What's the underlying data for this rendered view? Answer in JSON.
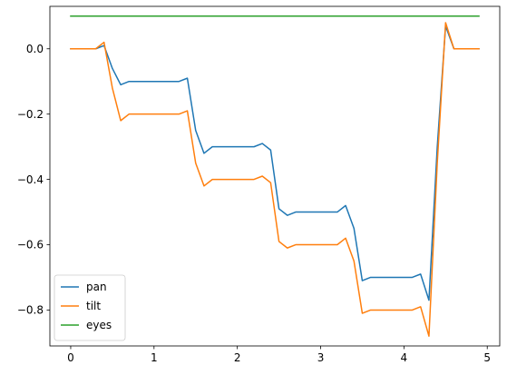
{
  "chart_data": {
    "type": "line",
    "title": "",
    "xlabel": "",
    "ylabel": "",
    "xlim": [
      -0.25,
      5.15
    ],
    "ylim": [
      -0.91,
      0.13
    ],
    "grid": false,
    "legend_position": "lower-left",
    "x": [
      0,
      0.1,
      0.2,
      0.3,
      0.4,
      0.5,
      0.6,
      0.7,
      0.8,
      0.9,
      1.0,
      1.1,
      1.2,
      1.3,
      1.4,
      1.5,
      1.6,
      1.7,
      1.8,
      1.9,
      2.0,
      2.1,
      2.2,
      2.3,
      2.4,
      2.5,
      2.6,
      2.7,
      2.8,
      2.9,
      3.0,
      3.1,
      3.2,
      3.3,
      3.4,
      3.5,
      3.6,
      3.7,
      3.8,
      3.9,
      4.0,
      4.1,
      4.2,
      4.3,
      4.4,
      4.5,
      4.6,
      4.7,
      4.8,
      4.9
    ],
    "x_ticks": [
      {
        "value": 0,
        "label": "0"
      },
      {
        "value": 1,
        "label": "1"
      },
      {
        "value": 2,
        "label": "2"
      },
      {
        "value": 3,
        "label": "3"
      },
      {
        "value": 4,
        "label": "4"
      },
      {
        "value": 5,
        "label": "5"
      }
    ],
    "y_ticks": [
      {
        "value": 0.0,
        "label": "0.0"
      },
      {
        "value": -0.2,
        "label": "−0.2"
      },
      {
        "value": -0.4,
        "label": "−0.4"
      },
      {
        "value": -0.6,
        "label": "−0.6"
      },
      {
        "value": -0.8,
        "label": "−0.8"
      }
    ],
    "series": [
      {
        "name": "pan",
        "color": "#1f77b4",
        "values": [
          0,
          0,
          0,
          0,
          0.01,
          -0.06,
          -0.11,
          -0.1,
          -0.1,
          -0.1,
          -0.1,
          -0.1,
          -0.1,
          -0.1,
          -0.09,
          -0.25,
          -0.32,
          -0.3,
          -0.3,
          -0.3,
          -0.3,
          -0.3,
          -0.3,
          -0.29,
          -0.31,
          -0.49,
          -0.51,
          -0.5,
          -0.5,
          -0.5,
          -0.5,
          -0.5,
          -0.5,
          -0.48,
          -0.55,
          -0.71,
          -0.7,
          -0.7,
          -0.7,
          -0.7,
          -0.7,
          -0.7,
          -0.69,
          -0.77,
          -0.3,
          0.07,
          0,
          0,
          0,
          0
        ]
      },
      {
        "name": "tilt",
        "color": "#ff7f0e",
        "values": [
          0,
          0,
          0,
          0,
          0.02,
          -0.12,
          -0.22,
          -0.2,
          -0.2,
          -0.2,
          -0.2,
          -0.2,
          -0.2,
          -0.2,
          -0.19,
          -0.35,
          -0.42,
          -0.4,
          -0.4,
          -0.4,
          -0.4,
          -0.4,
          -0.4,
          -0.39,
          -0.41,
          -0.59,
          -0.61,
          -0.6,
          -0.6,
          -0.6,
          -0.6,
          -0.6,
          -0.6,
          -0.58,
          -0.65,
          -0.81,
          -0.8,
          -0.8,
          -0.8,
          -0.8,
          -0.8,
          -0.8,
          -0.79,
          -0.88,
          -0.35,
          0.08,
          0,
          0,
          0,
          0
        ]
      },
      {
        "name": "eyes",
        "color": "#2ca02c",
        "values": [
          0.1,
          0.1,
          0.1,
          0.1,
          0.1,
          0.1,
          0.1,
          0.1,
          0.1,
          0.1,
          0.1,
          0.1,
          0.1,
          0.1,
          0.1,
          0.1,
          0.1,
          0.1,
          0.1,
          0.1,
          0.1,
          0.1,
          0.1,
          0.1,
          0.1,
          0.1,
          0.1,
          0.1,
          0.1,
          0.1,
          0.1,
          0.1,
          0.1,
          0.1,
          0.1,
          0.1,
          0.1,
          0.1,
          0.1,
          0.1,
          0.1,
          0.1,
          0.1,
          0.1,
          0.1,
          0.1,
          0.1,
          0.1,
          0.1,
          0.1
        ]
      }
    ]
  }
}
